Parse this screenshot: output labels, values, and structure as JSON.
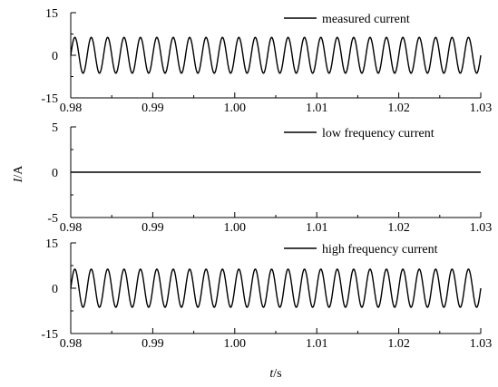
{
  "chart_data": [
    {
      "type": "line",
      "panel": "top",
      "series": [
        {
          "name": "measured current",
          "amplitude": 6.3,
          "frequency_hz": 500,
          "x_range": [
            0.98,
            1.03
          ]
        }
      ],
      "xlim": [
        0.98,
        1.03
      ],
      "ylim": [
        -15,
        15
      ],
      "xticks": [
        "0.98",
        "0.99",
        "1.00",
        "1.01",
        "1.02",
        "1.03"
      ],
      "yticks": [
        "-15",
        "0",
        "15"
      ],
      "grid": false,
      "legend_position": "top-right"
    },
    {
      "type": "line",
      "panel": "middle",
      "series": [
        {
          "name": "low frequency current",
          "amplitude": 0,
          "frequency_hz": 0,
          "x_range": [
            0.98,
            1.03
          ]
        }
      ],
      "xlim": [
        0.98,
        1.03
      ],
      "ylim": [
        -5,
        5
      ],
      "xticks": [
        "0.98",
        "0.99",
        "1.00",
        "1.01",
        "1.02",
        "1.03"
      ],
      "yticks": [
        "-5",
        "0",
        "5"
      ],
      "grid": false,
      "legend_position": "top-right"
    },
    {
      "type": "line",
      "panel": "bottom",
      "series": [
        {
          "name": "high frequency current",
          "amplitude": 6.3,
          "frequency_hz": 500,
          "x_range": [
            0.98,
            1.03
          ]
        }
      ],
      "xlim": [
        0.98,
        1.03
      ],
      "ylim": [
        -15,
        15
      ],
      "xticks": [
        "0.98",
        "0.99",
        "1.00",
        "1.01",
        "1.02",
        "1.03"
      ],
      "yticks": [
        "-15",
        "0",
        "15"
      ],
      "grid": false,
      "legend_position": "top-right"
    }
  ],
  "labels": {
    "ylabel": "I/A",
    "xlabel": "t/s"
  }
}
